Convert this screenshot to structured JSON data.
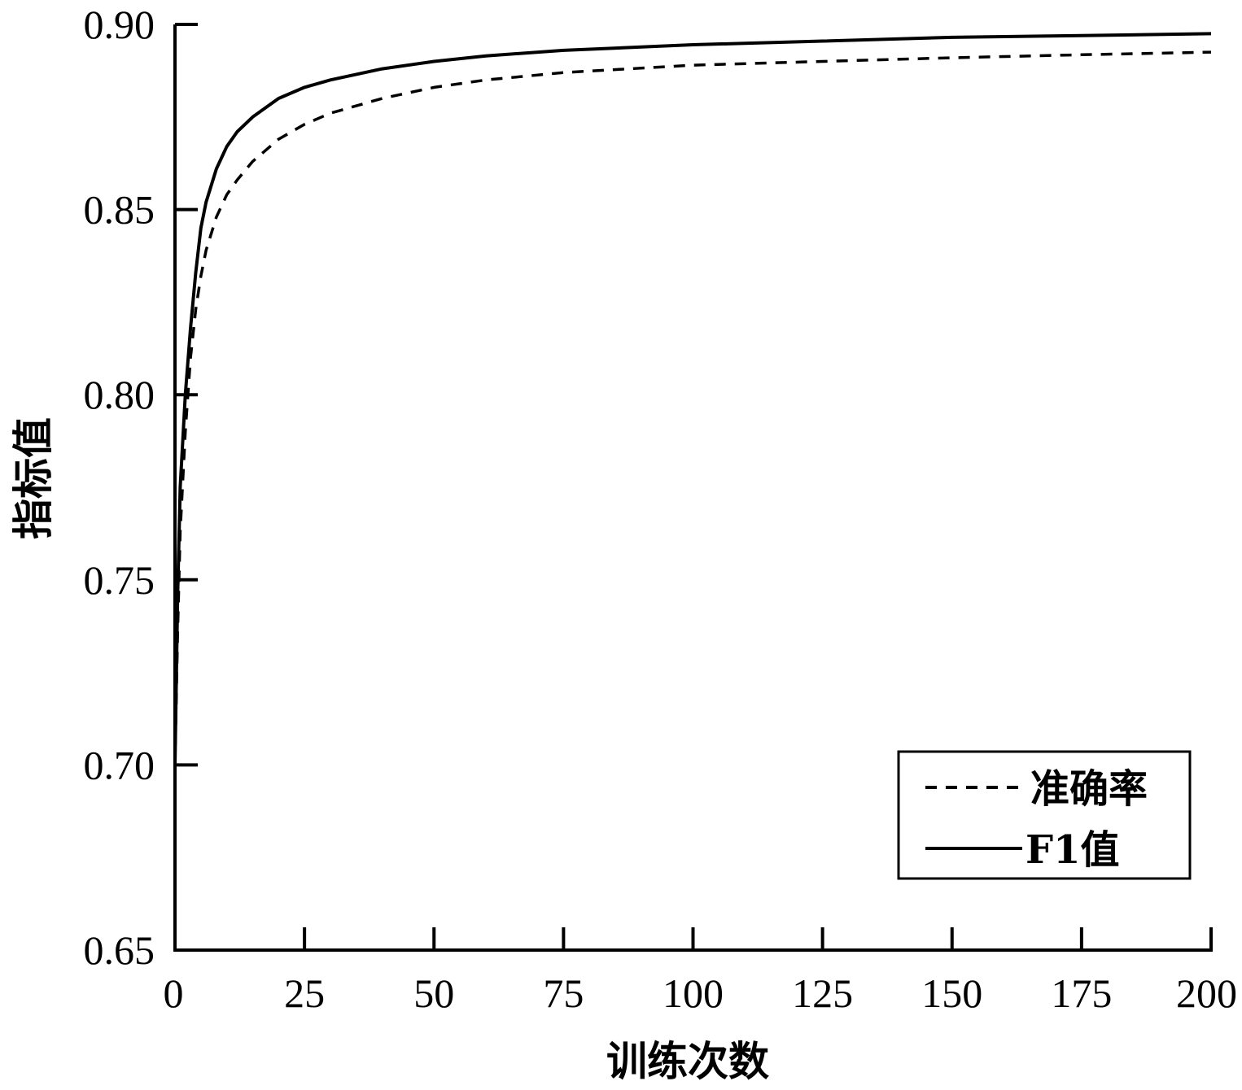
{
  "chart_data": {
    "type": "line",
    "xlabel": "训练次数",
    "ylabel": "指标值",
    "xlim": [
      0,
      200
    ],
    "ylim": [
      0.65,
      0.9
    ],
    "xticks": [
      "0",
      "25",
      "50",
      "75",
      "100",
      "125",
      "150",
      "175",
      "200"
    ],
    "yticks": [
      "0.65",
      "0.70",
      "0.75",
      "0.80",
      "0.85",
      "0.90"
    ],
    "grid": false,
    "legend_position": "bottom-right",
    "line_color": "#000000",
    "series": [
      {
        "name": "准确率",
        "style": "dashed",
        "points": [
          [
            0,
            0.7
          ],
          [
            0.5,
            0.735
          ],
          [
            1,
            0.763
          ],
          [
            2,
            0.79
          ],
          [
            3,
            0.81
          ],
          [
            4,
            0.823
          ],
          [
            5,
            0.832
          ],
          [
            6,
            0.839
          ],
          [
            8,
            0.848
          ],
          [
            10,
            0.854
          ],
          [
            12,
            0.858
          ],
          [
            15,
            0.863
          ],
          [
            20,
            0.869
          ],
          [
            25,
            0.873
          ],
          [
            30,
            0.876
          ],
          [
            40,
            0.88
          ],
          [
            50,
            0.883
          ],
          [
            60,
            0.885
          ],
          [
            75,
            0.887
          ],
          [
            100,
            0.889
          ],
          [
            125,
            0.89
          ],
          [
            150,
            0.891
          ],
          [
            175,
            0.8918
          ],
          [
            200,
            0.8925
          ]
        ]
      },
      {
        "name": "F1值",
        "style": "solid",
        "points": [
          [
            0,
            0.7
          ],
          [
            0.5,
            0.745
          ],
          [
            1,
            0.775
          ],
          [
            2,
            0.8
          ],
          [
            3,
            0.818
          ],
          [
            4,
            0.833
          ],
          [
            5,
            0.845
          ],
          [
            6,
            0.852
          ],
          [
            8,
            0.861
          ],
          [
            10,
            0.867
          ],
          [
            12,
            0.871
          ],
          [
            15,
            0.875
          ],
          [
            20,
            0.88
          ],
          [
            25,
            0.883
          ],
          [
            30,
            0.885
          ],
          [
            40,
            0.888
          ],
          [
            50,
            0.89
          ],
          [
            60,
            0.8915
          ],
          [
            75,
            0.893
          ],
          [
            100,
            0.8945
          ],
          [
            125,
            0.8955
          ],
          [
            150,
            0.8965
          ],
          [
            175,
            0.897
          ],
          [
            200,
            0.8975
          ]
        ]
      }
    ]
  }
}
